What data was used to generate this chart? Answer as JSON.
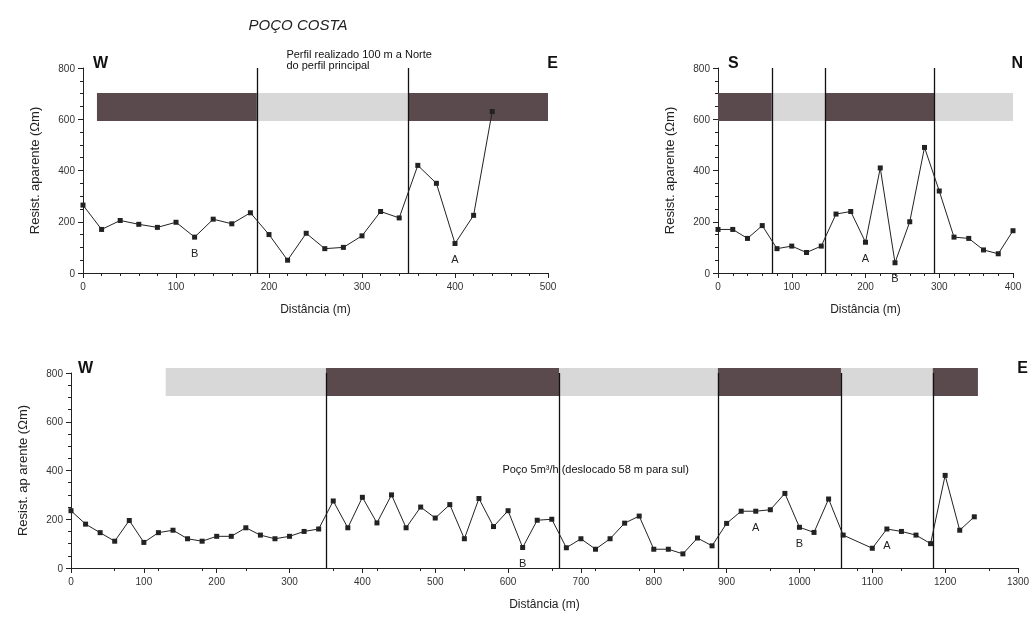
{
  "chart_data": [
    {
      "type": "line",
      "title": "POÇO COSTA",
      "xlabel": "Distância (m)",
      "ylabel": "Resist. aparente (Ωm)",
      "x": [
        0,
        20,
        40,
        60,
        80,
        100,
        120,
        140,
        160,
        180,
        200,
        220,
        240,
        260,
        280,
        300,
        320,
        340,
        360,
        380,
        400,
        420,
        440
      ],
      "values": [
        265,
        170,
        205,
        190,
        178,
        198,
        140,
        210,
        192,
        235,
        150,
        50,
        155,
        95,
        100,
        145,
        240,
        215,
        420,
        350,
        115,
        225,
        630
      ],
      "color": "#222222",
      "marker": "square",
      "xlim": [
        0,
        500
      ],
      "xticks": [
        0,
        100,
        200,
        300,
        400,
        500
      ],
      "ylim": [
        0,
        800
      ],
      "yticks": [
        0,
        200,
        400,
        600,
        800
      ],
      "grid": false,
      "ref_lines": [
        {
          "axis": "x",
          "value": 187,
          "label": null
        },
        {
          "axis": "x",
          "value": 350,
          "label": null
        }
      ],
      "bands": [
        {
          "axis": "x",
          "from": 15,
          "to": 187,
          "label": null,
          "color": "#5a4a4e"
        },
        {
          "axis": "x",
          "from": 187,
          "to": 350,
          "label": null,
          "color": "#d8d8d8"
        },
        {
          "axis": "x",
          "from": 350,
          "to": 500,
          "label": null,
          "color": "#5a4a4e"
        }
      ],
      "annotations": [
        "W",
        "E",
        "Perfil realizado 100 m a Norte do perfil principal",
        {
          "text": "B",
          "x": 120,
          "y": 140
        },
        {
          "text": "A",
          "x": 400,
          "y": 115
        }
      ]
    },
    {
      "type": "line",
      "xlabel": "Distância (m)",
      "ylabel": "Resist. aparente (Ωm)",
      "x": [
        0,
        20,
        40,
        60,
        80,
        100,
        120,
        140,
        160,
        180,
        200,
        220,
        240,
        260,
        280,
        300,
        320,
        340,
        360,
        380,
        400
      ],
      "values": [
        170,
        170,
        135,
        185,
        95,
        105,
        80,
        105,
        230,
        240,
        120,
        410,
        40,
        200,
        490,
        320,
        140,
        135,
        90,
        75,
        165
      ],
      "color": "#222222",
      "marker": "square",
      "xlim": [
        0,
        400
      ],
      "xticks": [
        0,
        100,
        200,
        300,
        400
      ],
      "ylim": [
        0,
        800
      ],
      "yticks": [
        0,
        200,
        400,
        600,
        800
      ],
      "grid": false,
      "ref_lines": [
        {
          "axis": "x",
          "value": 73,
          "label": null
        },
        {
          "axis": "x",
          "value": 145,
          "label": null
        },
        {
          "axis": "x",
          "value": 293,
          "label": null
        }
      ],
      "bands": [
        {
          "axis": "x",
          "from": 0,
          "to": 73,
          "label": null,
          "color": "#5a4a4e"
        },
        {
          "axis": "x",
          "from": 73,
          "to": 145,
          "label": null,
          "color": "#d8d8d8"
        },
        {
          "axis": "x",
          "from": 145,
          "to": 293,
          "label": null,
          "color": "#5a4a4e"
        },
        {
          "axis": "x",
          "from": 293,
          "to": 400,
          "label": null,
          "color": "#d8d8d8"
        }
      ],
      "annotations": [
        "S",
        "N",
        {
          "text": "A",
          "x": 200,
          "y": 120
        },
        {
          "text": "B",
          "x": 240,
          "y": 40
        }
      ]
    },
    {
      "type": "line",
      "xlabel": "Distância (m)",
      "ylabel": "Resist. ap arente (Ωm)",
      "x": [
        0,
        20,
        40,
        60,
        80,
        100,
        120,
        140,
        160,
        180,
        200,
        220,
        240,
        260,
        280,
        300,
        320,
        340,
        360,
        380,
        400,
        420,
        440,
        460,
        480,
        500,
        520,
        540,
        560,
        580,
        600,
        620,
        640,
        660,
        680,
        700,
        720,
        740,
        760,
        780,
        800,
        820,
        840,
        860,
        880,
        900,
        920,
        940,
        960,
        980,
        1000,
        1020,
        1040,
        1060,
        1100,
        1120,
        1140,
        1160,
        1180,
        1200,
        1220,
        1240
      ],
      "values": [
        235,
        180,
        145,
        110,
        195,
        105,
        145,
        155,
        120,
        110,
        130,
        130,
        165,
        135,
        120,
        130,
        150,
        160,
        275,
        165,
        290,
        185,
        300,
        165,
        250,
        205,
        260,
        120,
        285,
        170,
        235,
        84,
        196,
        200,
        83,
        120,
        77,
        120,
        184,
        213,
        77,
        77,
        58,
        123,
        91,
        183,
        233,
        233,
        239,
        306,
        167,
        146,
        283,
        135,
        81,
        160,
        150,
        135,
        100,
        380,
        155,
        210
      ],
      "color": "#222222",
      "marker": "square",
      "xlim": [
        0,
        1300
      ],
      "xticks": [
        0,
        100,
        200,
        300,
        400,
        500,
        600,
        700,
        800,
        900,
        1000,
        1100,
        1200,
        1300
      ],
      "ylim": [
        0,
        800
      ],
      "yticks": [
        0,
        200,
        400,
        600,
        800
      ],
      "grid": false,
      "ref_lines": [
        {
          "axis": "x",
          "value": 350,
          "label": null
        },
        {
          "axis": "x",
          "value": 670,
          "label": null
        },
        {
          "axis": "x",
          "value": 888,
          "label": null
        },
        {
          "axis": "x",
          "value": 1057,
          "label": null
        },
        {
          "axis": "x",
          "value": 1183,
          "label": null
        }
      ],
      "bands": [
        {
          "axis": "x",
          "from": 130,
          "to": 350,
          "label": null,
          "color": "#d8d8d8"
        },
        {
          "axis": "x",
          "from": 350,
          "to": 670,
          "label": null,
          "color": "#5a4a4e"
        },
        {
          "axis": "x",
          "from": 670,
          "to": 888,
          "label": null,
          "color": "#d8d8d8"
        },
        {
          "axis": "x",
          "from": 888,
          "to": 1057,
          "label": null,
          "color": "#5a4a4e"
        },
        {
          "axis": "x",
          "from": 1057,
          "to": 1183,
          "label": null,
          "color": "#d8d8d8"
        },
        {
          "axis": "x",
          "from": 1183,
          "to": 1245,
          "label": null,
          "color": "#5a4a4e"
        }
      ],
      "annotations": [
        "W",
        "E",
        "Poço 5m³/h (deslocado 58 m para sul)",
        {
          "text": "B",
          "x": 620,
          "y": 84
        },
        {
          "text": "A",
          "x": 940,
          "y": 233
        },
        {
          "text": "B",
          "x": 1000,
          "y": 167
        },
        {
          "text": "A",
          "x": 1120,
          "y": 160
        }
      ]
    }
  ]
}
